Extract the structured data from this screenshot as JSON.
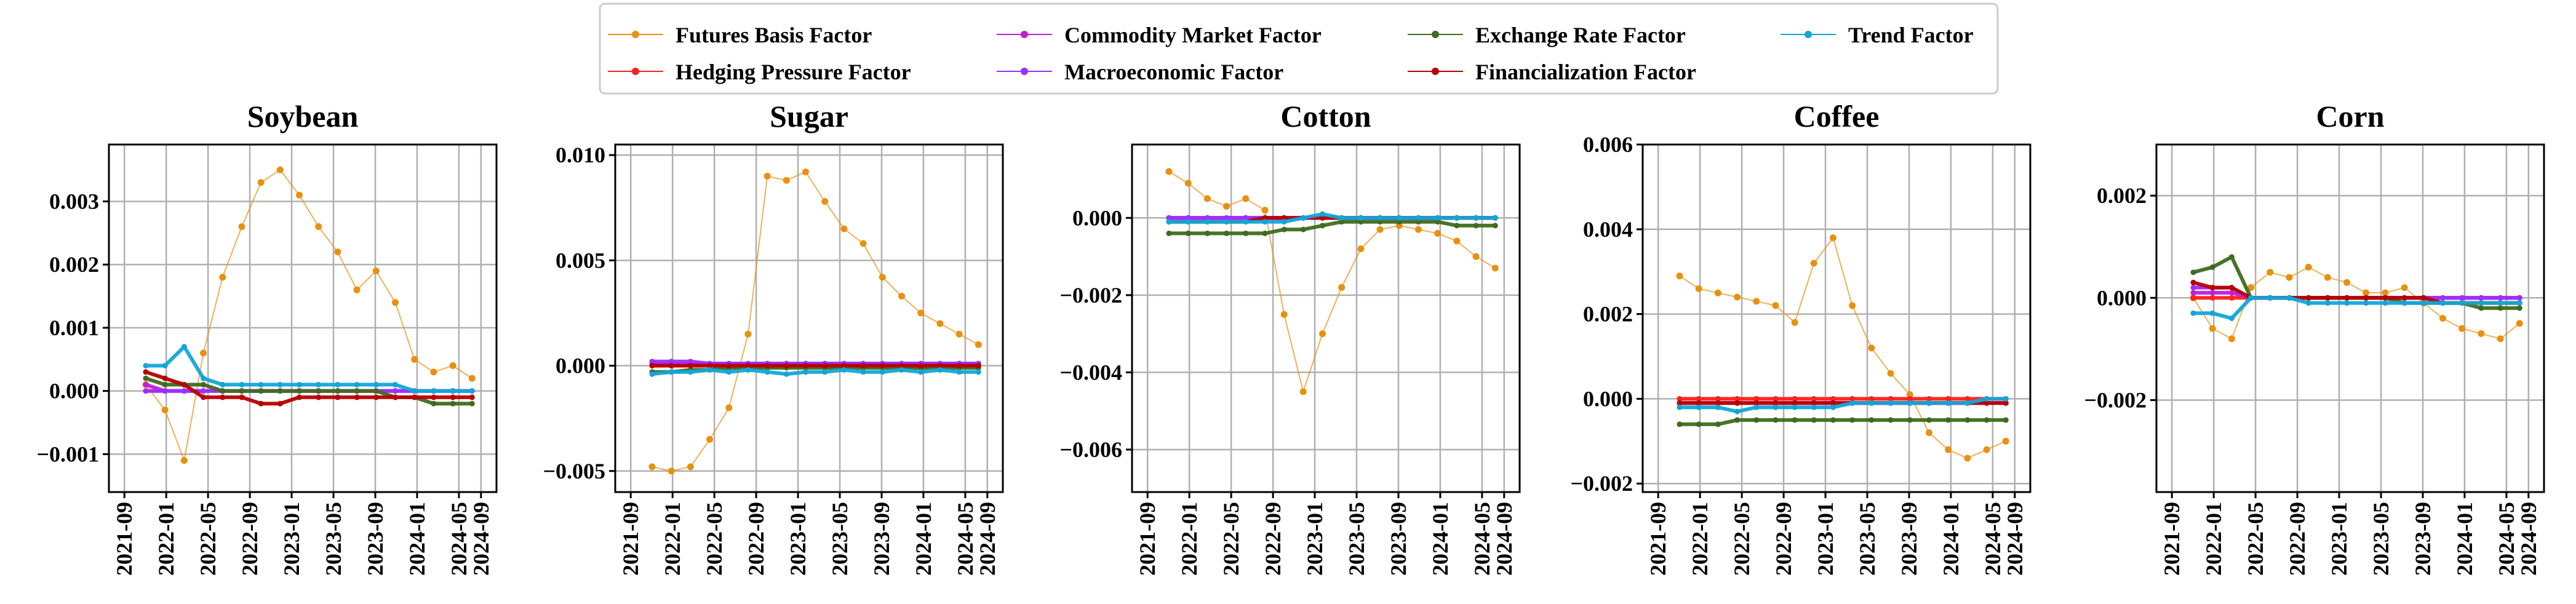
{
  "legend": [
    {
      "label": "Futures Basis Factor",
      "color": "#e8900f"
    },
    {
      "label": "Commodity Market Factor",
      "color": "#c21ed6"
    },
    {
      "label": "Exchange Rate Factor",
      "color": "#3f6b1e"
    },
    {
      "label": "Trend Factor",
      "color": "#12a6d8"
    },
    {
      "label": "Hedging Pressure Factor",
      "color": "#ff2020"
    },
    {
      "label": "Macroeconomic Factor",
      "color": "#9b30ff"
    },
    {
      "label": "Financialization Factor",
      "color": "#b80000"
    }
  ],
  "x_ticks": [
    "2021-09",
    "2022-01",
    "2022-05",
    "2022-09",
    "2023-01",
    "2023-05",
    "2023-09",
    "2024-01",
    "2024-05",
    "2024-09"
  ],
  "chart_data": [
    {
      "type": "line",
      "title": "Soybean",
      "ylim": [
        -0.0016,
        0.0039
      ],
      "yticks": [
        -0.001,
        0.0,
        0.001,
        0.002,
        0.003
      ],
      "ytick_labels": [
        "−0.001",
        "0.000",
        "0.001",
        "0.002",
        "0.003"
      ],
      "series": [
        {
          "name": "Futures Basis Factor",
          "values": [
            0.0001,
            -0.0003,
            -0.0011,
            0.0006,
            0.0018,
            0.0026,
            0.0033,
            0.0035,
            0.0031,
            0.0026,
            0.0022,
            0.0016,
            0.0019,
            0.0014,
            0.0005,
            0.0003,
            0.0004,
            0.0002
          ]
        },
        {
          "name": "Commodity Market Factor",
          "values": [
            0.0001,
            0.0,
            0.0,
            0.0,
            0.0,
            0.0,
            0.0,
            0.0,
            0.0,
            0.0,
            0.0,
            0.0,
            0.0,
            0.0,
            0.0,
            0.0,
            0.0,
            0.0
          ]
        },
        {
          "name": "Exchange Rate Factor",
          "values": [
            0.0002,
            0.0001,
            0.0001,
            0.0001,
            0.0,
            0.0,
            0.0,
            0.0,
            0.0,
            0.0,
            0.0,
            0.0,
            0.0,
            -0.0001,
            -0.0001,
            -0.0002,
            -0.0002,
            -0.0002
          ]
        },
        {
          "name": "Trend Factor",
          "values": [
            0.0004,
            0.0004,
            0.0007,
            0.0002,
            0.0001,
            0.0001,
            0.0001,
            0.0001,
            0.0001,
            0.0001,
            0.0001,
            0.0001,
            0.0001,
            0.0001,
            0.0,
            0.0,
            0.0,
            0.0
          ]
        },
        {
          "name": "Hedging Pressure Factor",
          "values": [
            0.0,
            0.0,
            0.0,
            0.0,
            0.0,
            0.0,
            0.0,
            0.0,
            0.0,
            0.0,
            0.0,
            0.0,
            0.0,
            0.0,
            0.0,
            0.0,
            0.0,
            0.0
          ]
        },
        {
          "name": "Macroeconomic Factor",
          "values": [
            0.0,
            0.0,
            0.0,
            0.0,
            0.0,
            0.0,
            0.0,
            0.0,
            0.0,
            0.0,
            0.0,
            0.0,
            0.0,
            0.0,
            0.0,
            0.0,
            0.0,
            0.0
          ]
        },
        {
          "name": "Financialization Factor",
          "values": [
            0.0003,
            0.0002,
            0.0001,
            -0.0001,
            -0.0001,
            -0.0001,
            -0.0002,
            -0.0002,
            -0.0001,
            -0.0001,
            -0.0001,
            -0.0001,
            -0.0001,
            -0.0001,
            -0.0001,
            -0.0001,
            -0.0001,
            -0.0001
          ]
        }
      ]
    },
    {
      "type": "line",
      "title": "Sugar",
      "ylim": [
        -0.006,
        0.0105
      ],
      "yticks": [
        -0.005,
        0.0,
        0.005,
        0.01
      ],
      "ytick_labels": [
        "−0.005",
        "0.000",
        "0.005",
        "0.010"
      ],
      "series": [
        {
          "name": "Futures Basis Factor",
          "values": [
            -0.0048,
            -0.005,
            -0.0048,
            -0.0035,
            -0.002,
            0.0015,
            0.009,
            0.0088,
            0.0092,
            0.0078,
            0.0065,
            0.0058,
            0.0042,
            0.0033,
            0.0025,
            0.002,
            0.0015,
            0.001
          ]
        },
        {
          "name": "Commodity Market Factor",
          "values": [
            0.0001,
            0.0001,
            0.0001,
            0.0001,
            0.0001,
            0.0001,
            0.0001,
            0.0001,
            0.0001,
            0.0001,
            0.0001,
            0.0001,
            0.0001,
            0.0001,
            0.0001,
            0.0001,
            0.0001,
            0.0001
          ]
        },
        {
          "name": "Exchange Rate Factor",
          "values": [
            -0.0003,
            -0.0003,
            -0.0002,
            -0.0002,
            -0.0001,
            -0.0001,
            -0.0001,
            -0.0001,
            -0.0001,
            -0.0001,
            -0.0001,
            -0.0001,
            -0.0001,
            -0.0001,
            -0.0001,
            -0.0001,
            -0.0001,
            -0.0001
          ]
        },
        {
          "name": "Trend Factor",
          "values": [
            -0.0004,
            -0.0003,
            -0.0003,
            -0.0002,
            -0.0003,
            -0.0002,
            -0.0003,
            -0.0004,
            -0.0003,
            -0.0003,
            -0.0002,
            -0.0003,
            -0.0003,
            -0.0002,
            -0.0003,
            -0.0002,
            -0.0003,
            -0.0003
          ]
        },
        {
          "name": "Hedging Pressure Factor",
          "values": [
            0.0,
            0.0,
            0.0,
            0.0,
            0.0,
            0.0,
            0.0,
            0.0,
            0.0,
            0.0,
            0.0,
            0.0,
            0.0,
            0.0,
            0.0,
            0.0,
            0.0,
            0.0
          ]
        },
        {
          "name": "Macroeconomic Factor",
          "values": [
            0.0002,
            0.0002,
            0.0002,
            0.0001,
            0.0001,
            0.0001,
            0.0001,
            0.0001,
            0.0001,
            0.0001,
            0.0001,
            0.0001,
            0.0001,
            0.0001,
            0.0001,
            0.0001,
            0.0001,
            0.0001
          ]
        },
        {
          "name": "Financialization Factor",
          "values": [
            0.0,
            0.0,
            0.0,
            0.0,
            0.0,
            0.0,
            0.0,
            0.0,
            0.0,
            0.0,
            0.0,
            0.0,
            0.0,
            0.0,
            0.0,
            0.0,
            0.0,
            0.0
          ]
        }
      ]
    },
    {
      "type": "line",
      "title": "Cotton",
      "ylim": [
        -0.0071,
        0.0019
      ],
      "yticks": [
        -0.006,
        -0.004,
        -0.002,
        0.0
      ],
      "ytick_labels": [
        "−0.006",
        "−0.004",
        "−0.002",
        "0.000"
      ],
      "series": [
        {
          "name": "Futures Basis Factor",
          "values": [
            0.0012,
            0.0009,
            0.0005,
            0.0003,
            0.0005,
            0.0002,
            -0.0025,
            -0.0045,
            -0.003,
            -0.0018,
            -0.0008,
            -0.0003,
            -0.0002,
            -0.0003,
            -0.0004,
            -0.0006,
            -0.001,
            -0.0013
          ]
        },
        {
          "name": "Commodity Market Factor",
          "values": [
            0.0,
            0.0,
            0.0,
            0.0,
            0.0,
            0.0,
            0.0,
            0.0,
            0.0,
            0.0,
            0.0,
            0.0,
            0.0,
            0.0,
            0.0,
            0.0,
            0.0,
            0.0
          ]
        },
        {
          "name": "Exchange Rate Factor",
          "values": [
            -0.0004,
            -0.0004,
            -0.0004,
            -0.0004,
            -0.0004,
            -0.0004,
            -0.0003,
            -0.0003,
            -0.0002,
            -0.0001,
            -0.0001,
            -0.0001,
            -0.0001,
            -0.0001,
            -0.0001,
            -0.0002,
            -0.0002,
            -0.0002
          ]
        },
        {
          "name": "Trend Factor",
          "values": [
            -0.0001,
            -0.0001,
            -0.0001,
            -0.0001,
            -0.0001,
            -0.0001,
            -0.0001,
            0.0,
            0.0001,
            0.0,
            0.0,
            0.0,
            0.0,
            0.0,
            0.0,
            0.0,
            0.0,
            0.0
          ]
        },
        {
          "name": "Hedging Pressure Factor",
          "values": [
            0.0,
            0.0,
            0.0,
            0.0,
            0.0,
            0.0,
            0.0,
            0.0,
            0.0,
            0.0,
            0.0,
            0.0,
            0.0,
            0.0,
            0.0,
            0.0,
            0.0,
            0.0
          ]
        },
        {
          "name": "Macroeconomic Factor",
          "values": [
            0.0,
            0.0,
            0.0,
            0.0,
            0.0,
            0.0,
            0.0,
            0.0,
            0.0,
            0.0,
            0.0,
            0.0,
            0.0,
            0.0,
            0.0,
            0.0,
            0.0,
            0.0
          ]
        },
        {
          "name": "Financialization Factor",
          "values": [
            -0.0001,
            -0.0001,
            -0.0001,
            -0.0001,
            -0.0001,
            0.0,
            0.0,
            0.0,
            0.0,
            0.0,
            0.0,
            0.0,
            0.0,
            0.0,
            0.0,
            0.0,
            0.0,
            0.0
          ]
        }
      ]
    },
    {
      "type": "line",
      "title": "Coffee",
      "ylim": [
        -0.0022,
        0.006
      ],
      "yticks": [
        -0.002,
        0.0,
        0.002,
        0.004,
        0.006
      ],
      "ytick_labels": [
        "−0.002",
        "0.000",
        "0.002",
        "0.004",
        "0.006"
      ],
      "series": [
        {
          "name": "Futures Basis Factor",
          "values": [
            0.0029,
            0.0026,
            0.0025,
            0.0024,
            0.0023,
            0.0022,
            0.0018,
            0.0032,
            0.0038,
            0.0022,
            0.0012,
            0.0006,
            0.0001,
            -0.0008,
            -0.0012,
            -0.0014,
            -0.0012,
            -0.001
          ]
        },
        {
          "name": "Commodity Market Factor",
          "values": [
            -0.0001,
            -0.0001,
            -0.0001,
            -0.0001,
            -0.0001,
            -0.0001,
            -0.0001,
            -0.0001,
            -0.0001,
            -0.0001,
            -0.0001,
            -0.0001,
            -0.0001,
            -0.0001,
            -0.0001,
            -0.0001,
            -0.0001,
            -0.0001
          ]
        },
        {
          "name": "Exchange Rate Factor",
          "values": [
            -0.0006,
            -0.0006,
            -0.0006,
            -0.0005,
            -0.0005,
            -0.0005,
            -0.0005,
            -0.0005,
            -0.0005,
            -0.0005,
            -0.0005,
            -0.0005,
            -0.0005,
            -0.0005,
            -0.0005,
            -0.0005,
            -0.0005,
            -0.0005
          ]
        },
        {
          "name": "Trend Factor",
          "values": [
            -0.0002,
            -0.0002,
            -0.0002,
            -0.0003,
            -0.0002,
            -0.0002,
            -0.0002,
            -0.0002,
            -0.0002,
            -0.0001,
            -0.0001,
            -0.0001,
            -0.0001,
            -0.0001,
            -0.0001,
            -0.0001,
            0.0,
            0.0
          ]
        },
        {
          "name": "Hedging Pressure Factor",
          "values": [
            0.0,
            0.0,
            0.0,
            0.0,
            0.0,
            0.0,
            0.0,
            0.0,
            0.0,
            0.0,
            0.0,
            0.0,
            0.0,
            0.0,
            0.0,
            0.0,
            0.0,
            0.0
          ]
        },
        {
          "name": "Macroeconomic Factor",
          "values": [
            -0.0001,
            -0.0001,
            -0.0001,
            -0.0001,
            -0.0001,
            -0.0001,
            -0.0001,
            -0.0001,
            -0.0001,
            -0.0001,
            -0.0001,
            -0.0001,
            -0.0001,
            -0.0001,
            -0.0001,
            -0.0001,
            -0.0001,
            -0.0001
          ]
        },
        {
          "name": "Financialization Factor",
          "values": [
            -0.0001,
            -0.0001,
            -0.0001,
            -0.0001,
            -0.0001,
            -0.0001,
            -0.0001,
            -0.0001,
            -0.0001,
            -0.0001,
            -0.0001,
            -0.0001,
            -0.0001,
            -0.0001,
            -0.0001,
            -0.0001,
            -0.0001,
            -0.0001
          ]
        }
      ]
    },
    {
      "type": "line",
      "title": "Corn",
      "ylim": [
        -0.0038,
        0.003
      ],
      "yticks": [
        -0.002,
        0.0,
        0.002
      ],
      "ytick_labels": [
        "−0.002",
        "0.000",
        "0.002"
      ],
      "series": [
        {
          "name": "Futures Basis Factor",
          "values": [
            0.0,
            -0.0006,
            -0.0008,
            0.0002,
            0.0005,
            0.0004,
            0.0006,
            0.0004,
            0.0003,
            0.0001,
            0.0001,
            0.0002,
            -0.0001,
            -0.0004,
            -0.0006,
            -0.0007,
            -0.0008,
            -0.0005
          ]
        },
        {
          "name": "Commodity Market Factor",
          "values": [
            0.0001,
            0.0001,
            0.0001,
            0.0,
            0.0,
            0.0,
            0.0,
            0.0,
            0.0,
            0.0,
            0.0,
            0.0,
            0.0,
            0.0,
            0.0,
            0.0,
            0.0,
            0.0
          ]
        },
        {
          "name": "Exchange Rate Factor",
          "values": [
            0.0005,
            0.0006,
            0.0008,
            0.0,
            0.0,
            0.0,
            0.0,
            0.0,
            0.0,
            0.0,
            0.0,
            -0.0001,
            -0.0001,
            -0.0001,
            -0.0001,
            -0.0002,
            -0.0002,
            -0.0002
          ]
        },
        {
          "name": "Trend Factor",
          "values": [
            -0.0003,
            -0.0003,
            -0.0004,
            0.0,
            0.0,
            0.0,
            -0.0001,
            -0.0001,
            -0.0001,
            -0.0001,
            -0.0001,
            -0.0001,
            -0.0001,
            -0.0001,
            -0.0001,
            -0.0001,
            -0.0001,
            -0.0001
          ]
        },
        {
          "name": "Hedging Pressure Factor",
          "values": [
            0.0,
            0.0,
            0.0,
            0.0,
            0.0,
            0.0,
            0.0,
            0.0,
            0.0,
            0.0,
            0.0,
            0.0,
            0.0,
            0.0,
            0.0,
            0.0,
            0.0,
            0.0
          ]
        },
        {
          "name": "Macroeconomic Factor",
          "values": [
            0.0002,
            0.0002,
            0.0002,
            0.0,
            0.0,
            0.0,
            0.0,
            0.0,
            0.0,
            0.0,
            0.0,
            0.0,
            0.0,
            0.0,
            0.0,
            0.0,
            0.0,
            0.0
          ]
        },
        {
          "name": "Financialization Factor",
          "values": [
            0.0003,
            0.0002,
            0.0002,
            0.0,
            0.0,
            0.0,
            0.0,
            0.0,
            0.0,
            0.0,
            0.0,
            0.0,
            0.0,
            -0.0001,
            -0.0001,
            -0.0001,
            -0.0001,
            -0.0001
          ]
        }
      ]
    }
  ]
}
